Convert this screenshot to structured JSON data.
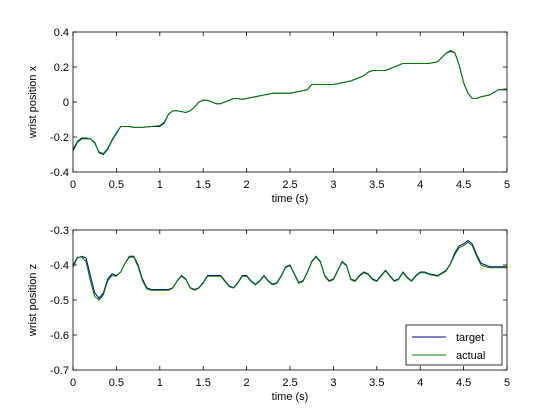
{
  "chart_data": [
    {
      "type": "line",
      "xlabel": "time (s)",
      "ylabel": "wrist position x",
      "xlim": [
        0,
        5
      ],
      "ylim": [
        -0.4,
        0.4
      ],
      "xticks": [
        "0",
        "0.5",
        "1",
        "1.5",
        "2",
        "2.5",
        "3",
        "3.5",
        "4",
        "4.5",
        "5"
      ],
      "yticks": [
        "0.4",
        "0.2",
        "0",
        "-0.2",
        "-0.4"
      ],
      "grid": false,
      "series": [
        {
          "name": "target",
          "color": "#00008b",
          "x": [
            0,
            0.05,
            0.1,
            0.15,
            0.2,
            0.25,
            0.3,
            0.35,
            0.4,
            0.45,
            0.5,
            0.55,
            0.6,
            0.65,
            0.7,
            0.8,
            0.9,
            1.0,
            1.05,
            1.1,
            1.15,
            1.2,
            1.3,
            1.35,
            1.4,
            1.45,
            1.5,
            1.55,
            1.6,
            1.65,
            1.7,
            1.75,
            1.8,
            1.85,
            1.9,
            1.95,
            2.0,
            2.1,
            2.2,
            2.3,
            2.4,
            2.5,
            2.6,
            2.7,
            2.75,
            2.8,
            2.85,
            2.9,
            3.0,
            3.1,
            3.2,
            3.3,
            3.35,
            3.4,
            3.45,
            3.5,
            3.6,
            3.7,
            3.8,
            3.9,
            4.0,
            4.1,
            4.2,
            4.3,
            4.35,
            4.4,
            4.45,
            4.5,
            4.55,
            4.6,
            4.65,
            4.7,
            4.8,
            4.9,
            5.0
          ],
          "y": [
            -0.28,
            -0.23,
            -0.21,
            -0.21,
            -0.21,
            -0.23,
            -0.29,
            -0.3,
            -0.27,
            -0.22,
            -0.18,
            -0.14,
            -0.14,
            -0.14,
            -0.145,
            -0.145,
            -0.14,
            -0.14,
            -0.12,
            -0.07,
            -0.05,
            -0.05,
            -0.06,
            -0.05,
            -0.03,
            0.0,
            0.01,
            0.01,
            0.0,
            -0.01,
            -0.01,
            0.0,
            0.01,
            0.02,
            0.02,
            0.015,
            0.02,
            0.03,
            0.04,
            0.05,
            0.05,
            0.05,
            0.06,
            0.07,
            0.1,
            0.1,
            0.1,
            0.1,
            0.1,
            0.11,
            0.12,
            0.14,
            0.15,
            0.17,
            0.18,
            0.18,
            0.18,
            0.2,
            0.22,
            0.22,
            0.22,
            0.22,
            0.23,
            0.28,
            0.29,
            0.28,
            0.21,
            0.11,
            0.05,
            0.02,
            0.02,
            0.03,
            0.04,
            0.07,
            0.07
          ]
        },
        {
          "name": "actual",
          "color": "#008000",
          "x": [
            0,
            0.05,
            0.1,
            0.15,
            0.2,
            0.25,
            0.3,
            0.35,
            0.4,
            0.45,
            0.5,
            0.55,
            0.6,
            0.65,
            0.7,
            0.8,
            0.9,
            1.0,
            1.05,
            1.1,
            1.15,
            1.2,
            1.3,
            1.35,
            1.4,
            1.45,
            1.5,
            1.55,
            1.6,
            1.65,
            1.7,
            1.75,
            1.8,
            1.85,
            1.9,
            1.95,
            2.0,
            2.1,
            2.2,
            2.3,
            2.4,
            2.5,
            2.6,
            2.7,
            2.75,
            2.8,
            2.85,
            2.9,
            3.0,
            3.1,
            3.2,
            3.3,
            3.35,
            3.4,
            3.45,
            3.5,
            3.6,
            3.7,
            3.8,
            3.9,
            4.0,
            4.1,
            4.2,
            4.3,
            4.35,
            4.4,
            4.45,
            4.5,
            4.55,
            4.6,
            4.65,
            4.7,
            4.8,
            4.9,
            5.0
          ],
          "y": [
            -0.27,
            -0.225,
            -0.205,
            -0.205,
            -0.21,
            -0.235,
            -0.285,
            -0.295,
            -0.265,
            -0.215,
            -0.175,
            -0.14,
            -0.14,
            -0.14,
            -0.145,
            -0.145,
            -0.14,
            -0.135,
            -0.115,
            -0.07,
            -0.05,
            -0.05,
            -0.06,
            -0.05,
            -0.03,
            0.0,
            0.01,
            0.01,
            0.0,
            -0.01,
            -0.01,
            0.0,
            0.01,
            0.02,
            0.02,
            0.015,
            0.02,
            0.03,
            0.04,
            0.05,
            0.05,
            0.05,
            0.06,
            0.07,
            0.1,
            0.1,
            0.1,
            0.1,
            0.1,
            0.11,
            0.12,
            0.14,
            0.15,
            0.17,
            0.18,
            0.18,
            0.18,
            0.2,
            0.22,
            0.22,
            0.22,
            0.22,
            0.23,
            0.28,
            0.295,
            0.28,
            0.21,
            0.11,
            0.05,
            0.02,
            0.02,
            0.03,
            0.04,
            0.07,
            0.075
          ]
        }
      ]
    },
    {
      "type": "line",
      "xlabel": "time (s)",
      "ylabel": "wrist position z",
      "xlim": [
        0,
        5
      ],
      "ylim": [
        -0.7,
        -0.3
      ],
      "xticks": [
        "0",
        "0.5",
        "1",
        "1.5",
        "2",
        "2.5",
        "3",
        "3.5",
        "4",
        "4.5",
        "5"
      ],
      "yticks": [
        "-0.3",
        "-0.4",
        "-0.5",
        "-0.6",
        "-0.7"
      ],
      "grid": false,
      "legend": {
        "position": "bottom-right",
        "entries": [
          "target",
          "actual"
        ]
      },
      "series": [
        {
          "name": "target",
          "color": "#00008b",
          "x": [
            0,
            0.05,
            0.1,
            0.15,
            0.2,
            0.25,
            0.3,
            0.35,
            0.4,
            0.45,
            0.5,
            0.55,
            0.6,
            0.65,
            0.7,
            0.75,
            0.8,
            0.85,
            0.9,
            1.0,
            1.1,
            1.15,
            1.2,
            1.25,
            1.3,
            1.35,
            1.4,
            1.45,
            1.5,
            1.55,
            1.6,
            1.7,
            1.75,
            1.8,
            1.85,
            1.9,
            1.95,
            2.0,
            2.05,
            2.1,
            2.15,
            2.2,
            2.25,
            2.3,
            2.35,
            2.4,
            2.45,
            2.5,
            2.55,
            2.6,
            2.65,
            2.7,
            2.75,
            2.8,
            2.85,
            2.9,
            2.95,
            3.0,
            3.05,
            3.1,
            3.15,
            3.2,
            3.25,
            3.3,
            3.35,
            3.4,
            3.45,
            3.5,
            3.55,
            3.6,
            3.65,
            3.7,
            3.75,
            3.8,
            3.85,
            3.9,
            3.95,
            4.0,
            4.05,
            4.1,
            4.2,
            4.3,
            4.35,
            4.4,
            4.45,
            4.5,
            4.55,
            4.6,
            4.65,
            4.7,
            4.75,
            4.8,
            4.9,
            5.0
          ],
          "y": [
            -0.405,
            -0.38,
            -0.375,
            -0.38,
            -0.43,
            -0.48,
            -0.495,
            -0.48,
            -0.44,
            -0.425,
            -0.43,
            -0.42,
            -0.395,
            -0.375,
            -0.375,
            -0.4,
            -0.44,
            -0.465,
            -0.47,
            -0.47,
            -0.47,
            -0.465,
            -0.445,
            -0.43,
            -0.44,
            -0.465,
            -0.47,
            -0.465,
            -0.45,
            -0.43,
            -0.43,
            -0.43,
            -0.445,
            -0.46,
            -0.465,
            -0.45,
            -0.43,
            -0.43,
            -0.445,
            -0.455,
            -0.445,
            -0.43,
            -0.445,
            -0.455,
            -0.45,
            -0.43,
            -0.405,
            -0.4,
            -0.425,
            -0.45,
            -0.445,
            -0.42,
            -0.39,
            -0.375,
            -0.39,
            -0.43,
            -0.445,
            -0.44,
            -0.415,
            -0.39,
            -0.4,
            -0.44,
            -0.445,
            -0.43,
            -0.42,
            -0.425,
            -0.44,
            -0.445,
            -0.43,
            -0.415,
            -0.43,
            -0.445,
            -0.44,
            -0.42,
            -0.435,
            -0.445,
            -0.43,
            -0.42,
            -0.42,
            -0.425,
            -0.43,
            -0.415,
            -0.395,
            -0.365,
            -0.345,
            -0.34,
            -0.33,
            -0.34,
            -0.37,
            -0.395,
            -0.4,
            -0.405,
            -0.405,
            -0.405
          ]
        },
        {
          "name": "actual",
          "color": "#008000",
          "x": [
            0,
            0.05,
            0.1,
            0.15,
            0.2,
            0.25,
            0.3,
            0.35,
            0.4,
            0.45,
            0.5,
            0.55,
            0.6,
            0.65,
            0.7,
            0.75,
            0.8,
            0.85,
            0.9,
            1.0,
            1.1,
            1.15,
            1.2,
            1.25,
            1.3,
            1.35,
            1.4,
            1.45,
            1.5,
            1.55,
            1.6,
            1.7,
            1.75,
            1.8,
            1.85,
            1.9,
            1.95,
            2.0,
            2.05,
            2.1,
            2.15,
            2.2,
            2.25,
            2.3,
            2.35,
            2.4,
            2.45,
            2.5,
            2.55,
            2.6,
            2.65,
            2.7,
            2.75,
            2.8,
            2.85,
            2.9,
            2.95,
            3.0,
            3.05,
            3.1,
            3.15,
            3.2,
            3.25,
            3.3,
            3.35,
            3.4,
            3.45,
            3.5,
            3.55,
            3.6,
            3.65,
            3.7,
            3.75,
            3.8,
            3.85,
            3.9,
            3.95,
            4.0,
            4.05,
            4.1,
            4.2,
            4.3,
            4.35,
            4.4,
            4.45,
            4.5,
            4.55,
            4.6,
            4.65,
            4.7,
            4.75,
            4.8,
            4.9,
            5.0
          ],
          "y": [
            -0.4,
            -0.378,
            -0.377,
            -0.39,
            -0.445,
            -0.49,
            -0.5,
            -0.485,
            -0.445,
            -0.43,
            -0.432,
            -0.42,
            -0.395,
            -0.378,
            -0.377,
            -0.405,
            -0.445,
            -0.468,
            -0.472,
            -0.472,
            -0.472,
            -0.466,
            -0.446,
            -0.432,
            -0.442,
            -0.466,
            -0.472,
            -0.466,
            -0.452,
            -0.432,
            -0.432,
            -0.432,
            -0.447,
            -0.462,
            -0.466,
            -0.452,
            -0.432,
            -0.432,
            -0.447,
            -0.457,
            -0.447,
            -0.432,
            -0.447,
            -0.457,
            -0.452,
            -0.432,
            -0.407,
            -0.402,
            -0.427,
            -0.452,
            -0.447,
            -0.422,
            -0.392,
            -0.377,
            -0.392,
            -0.432,
            -0.447,
            -0.442,
            -0.417,
            -0.392,
            -0.402,
            -0.442,
            -0.447,
            -0.432,
            -0.422,
            -0.427,
            -0.442,
            -0.447,
            -0.432,
            -0.417,
            -0.432,
            -0.447,
            -0.442,
            -0.422,
            -0.437,
            -0.447,
            -0.432,
            -0.422,
            -0.422,
            -0.427,
            -0.432,
            -0.417,
            -0.397,
            -0.37,
            -0.35,
            -0.345,
            -0.335,
            -0.345,
            -0.375,
            -0.4,
            -0.405,
            -0.408,
            -0.408,
            -0.408
          ]
        }
      ]
    }
  ]
}
